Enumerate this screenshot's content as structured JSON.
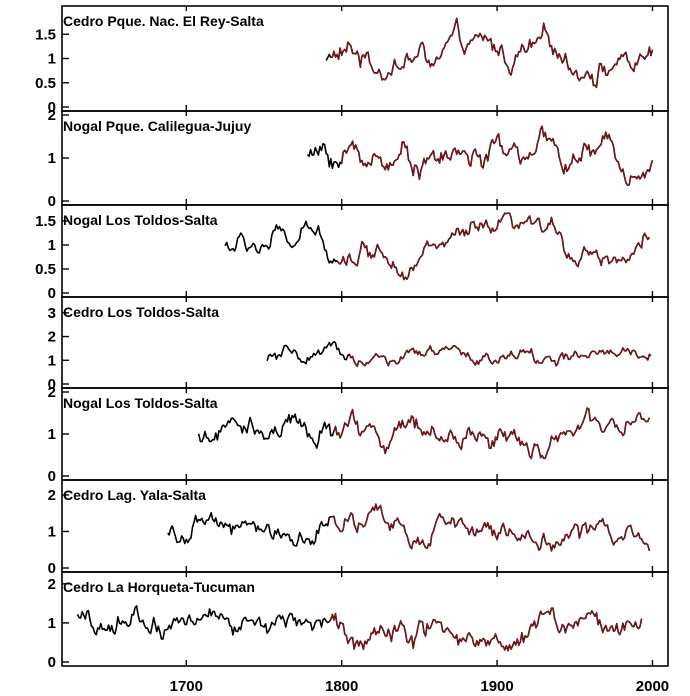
{
  "chart_data": [
    {
      "type": "line",
      "title": "Cedro Pque. Nac. El Rey-Salta",
      "yticks": [
        "0",
        "0.5",
        "1",
        "1.5"
      ],
      "ylim": [
        0,
        2
      ],
      "xlim": [
        1620,
        2010
      ],
      "start": 1790,
      "red_start": 1793,
      "end": 2000,
      "mean": 1,
      "noise": 0.26
    },
    {
      "type": "line",
      "title": "Nogal Pque. Calilegua-Jujuy",
      "yticks": [
        "0",
        "1",
        "2"
      ],
      "ylim": [
        0,
        2
      ],
      "xlim": [
        1620,
        2010
      ],
      "start": 1778,
      "red_start": 1800,
      "end": 2000,
      "mean": 1.05,
      "noise": 0.32
    },
    {
      "type": "line",
      "title": "Nogal Los Toldos-Salta",
      "yticks": [
        "0",
        "0.5",
        "1",
        "1.5"
      ],
      "ylim": [
        0,
        1.75
      ],
      "xlim": [
        1620,
        2010
      ],
      "start": 1725,
      "red_start": 1797,
      "end": 1998,
      "mean": 1,
      "noise": 0.2
    },
    {
      "type": "line",
      "title": "Cedro Los Toldos-Salta",
      "yticks": [
        "0",
        "1",
        "2",
        "3"
      ],
      "ylim": [
        0,
        3.5
      ],
      "xlim": [
        1620,
        2010
      ],
      "start": 1752,
      "red_start": 1805,
      "end": 1999,
      "mean": 1.05,
      "noise": 0.3
    },
    {
      "type": "line",
      "title": "Nogal Los Toldos-Salta",
      "yticks": [
        "0",
        "1",
        "2"
      ],
      "ylim": [
        0,
        2
      ],
      "xlim": [
        1620,
        2010
      ],
      "start": 1708,
      "red_start": 1795,
      "end": 1998,
      "mean": 1,
      "noise": 0.3
    },
    {
      "type": "line",
      "title": "Cedro Lag. Yala-Salta",
      "yticks": [
        "0",
        "1",
        "2"
      ],
      "ylim": [
        0,
        2.3
      ],
      "xlim": [
        1620,
        2010
      ],
      "start": 1688,
      "red_start": 1793,
      "end": 1998,
      "mean": 1,
      "noise": 0.3
    },
    {
      "type": "line",
      "title": "Cedro La Horqueta-Tucuman",
      "yticks": [
        "0",
        "1",
        "2"
      ],
      "ylim": [
        0,
        2.2
      ],
      "xlim": [
        1620,
        2010
      ],
      "start": 1630,
      "red_start": 1792,
      "end": 1993,
      "mean": 1,
      "noise": 0.32
    }
  ],
  "x_axis": {
    "ticks": [
      "1700",
      "1800",
      "1900",
      "2000"
    ],
    "tick_values": [
      1700,
      1800,
      1900,
      2000
    ]
  },
  "colors": {
    "chronology": "#000000",
    "overlay": "#c0141c"
  }
}
